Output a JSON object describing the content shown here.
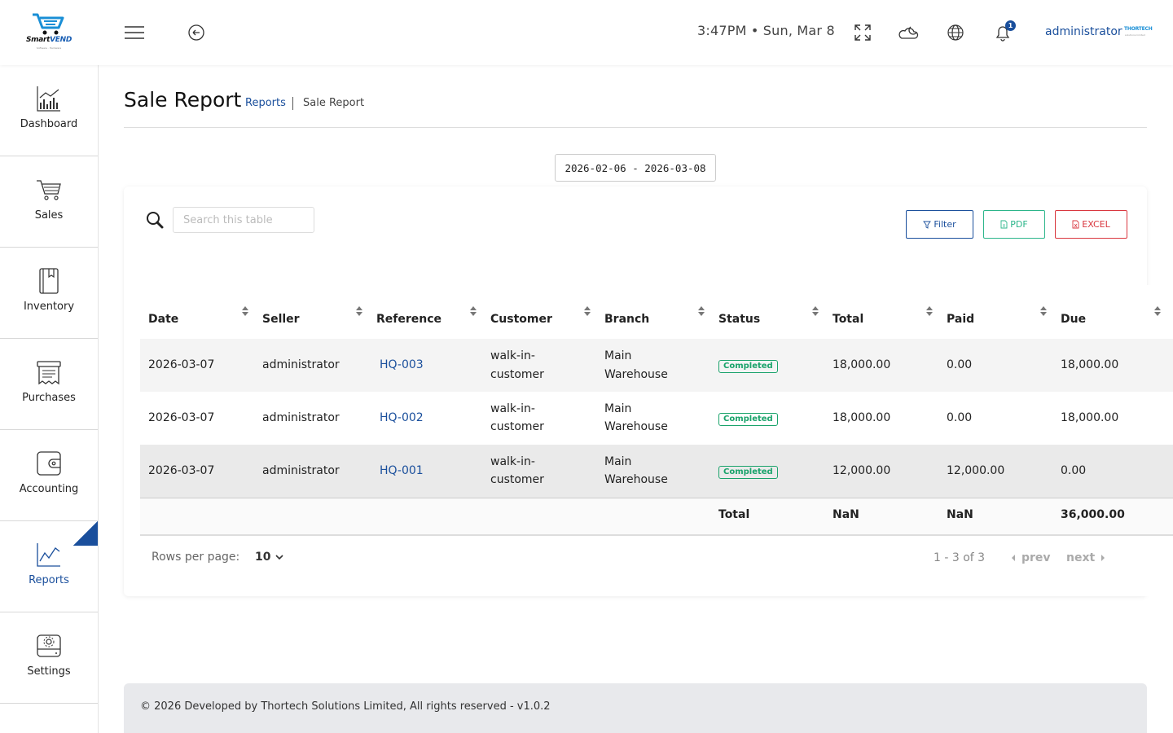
{
  "app": {
    "brand_prefix": "Smart",
    "brand_suffix": "VEND",
    "brand_tagline": "Software · Hardware",
    "clock": "3:47PM • Sun, Mar 8",
    "notification_count": "1",
    "user": "administrator",
    "org_logo": "THORTECH",
    "org_tagline": "solutions limited"
  },
  "sidebar": {
    "items": [
      {
        "label": "Dashboard",
        "icon": "dashboard-chart-icon"
      },
      {
        "label": "Sales",
        "icon": "cart-icon"
      },
      {
        "label": "Inventory",
        "icon": "book-icon"
      },
      {
        "label": "Purchases",
        "icon": "receipt-icon"
      },
      {
        "label": "Accounting",
        "icon": "wallet-icon"
      },
      {
        "label": "Reports",
        "icon": "line-chart-icon",
        "active": true
      },
      {
        "label": "Settings",
        "icon": "settings-drive-icon"
      }
    ]
  },
  "page": {
    "title": "Sale Report",
    "breadcrumb_parent": "Reports",
    "breadcrumb_current": "Sale Report",
    "date_range": "2026-02-06 - 2026-03-08"
  },
  "toolbar": {
    "search_placeholder": "Search this table",
    "filter_label": "Filter",
    "pdf_label": "PDF",
    "excel_label": "EXCEL"
  },
  "table": {
    "columns": [
      "Date",
      "Seller",
      "Reference",
      "Customer",
      "Branch",
      "Status",
      "Total",
      "Paid",
      "Due"
    ],
    "rows": [
      {
        "date": "2026-03-07",
        "seller": "administrator",
        "reference": "HQ-003",
        "customer_1": "walk-in-",
        "customer_2": "customer",
        "branch_1": "Main",
        "branch_2": "Warehouse",
        "status": "Completed",
        "total": "18,000.00",
        "paid": "0.00",
        "due": "18,000.00"
      },
      {
        "date": "2026-03-07",
        "seller": "administrator",
        "reference": "HQ-002",
        "customer_1": "walk-in-",
        "customer_2": "customer",
        "branch_1": "Main",
        "branch_2": "Warehouse",
        "status": "Completed",
        "total": "18,000.00",
        "paid": "0.00",
        "due": "18,000.00"
      },
      {
        "date": "2026-03-07",
        "seller": "administrator",
        "reference": "HQ-001",
        "customer_1": "walk-in-",
        "customer_2": "customer",
        "branch_1": "Main",
        "branch_2": "Warehouse",
        "status": "Completed",
        "total": "12,000.00",
        "paid": "12,000.00",
        "due": "0.00"
      }
    ],
    "totals": {
      "label": "Total",
      "total": "NaN",
      "paid": "NaN",
      "due": "36,000.00"
    }
  },
  "pagination": {
    "rows_per_page_label": "Rows per page:",
    "rows_per_page_value": "10",
    "info": "1 - 3 of 3",
    "prev": "prev",
    "next": "next"
  },
  "footer": {
    "text": "© 2026 Developed by Thortech Solutions Limited, All rights reserved - v1.0.2"
  },
  "colors": {
    "accent": "#1a4f9c",
    "pdf": "#2bb58a",
    "excel": "#d9363e",
    "status_completed": "#1aa36b"
  }
}
